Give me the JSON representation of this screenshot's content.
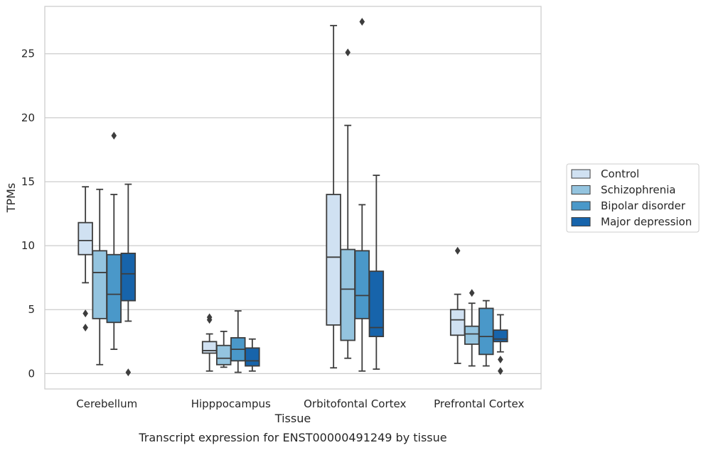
{
  "chart_data": {
    "type": "box",
    "title": "",
    "caption": "Transcript expression for ENST00000491249 by tissue",
    "xlabel": "Tissue",
    "ylabel": "TPMs",
    "ylim": [
      -1.2,
      28.7
    ],
    "yticks": [
      0,
      5,
      10,
      15,
      20,
      25
    ],
    "grid": "horizontal",
    "legend_position": "right",
    "categories": [
      "Cerebellum",
      "Hipppocampus",
      "Orbitofontal Cortex",
      "Prefrontal Cortex"
    ],
    "series": [
      {
        "name": "Control",
        "color": "#d0e1f2",
        "boxes": [
          {
            "whisker_low": 7.1,
            "q1": 9.3,
            "median": 10.4,
            "q3": 11.8,
            "whisker_high": 14.6,
            "outliers": [
              4.7,
              3.6
            ]
          },
          {
            "whisker_low": 0.2,
            "q1": 1.6,
            "median": 1.8,
            "q3": 2.5,
            "whisker_high": 3.1,
            "outliers": [
              4.2,
              4.4
            ]
          },
          {
            "whisker_low": 0.45,
            "q1": 3.8,
            "median": 9.1,
            "q3": 14.0,
            "whisker_high": 27.2,
            "outliers": []
          },
          {
            "whisker_low": 0.8,
            "q1": 3.0,
            "median": 4.2,
            "q3": 5.0,
            "whisker_high": 6.2,
            "outliers": [
              9.6
            ]
          }
        ]
      },
      {
        "name": "Schizophrenia",
        "color": "#94c4df",
        "boxes": [
          {
            "whisker_low": 0.7,
            "q1": 4.3,
            "median": 7.9,
            "q3": 9.6,
            "whisker_high": 14.4,
            "outliers": []
          },
          {
            "whisker_low": 0.5,
            "q1": 0.7,
            "median": 1.2,
            "q3": 2.2,
            "whisker_high": 3.3,
            "outliers": []
          },
          {
            "whisker_low": 1.2,
            "q1": 2.6,
            "median": 6.6,
            "q3": 9.7,
            "whisker_high": 19.4,
            "outliers": [
              25.1
            ]
          },
          {
            "whisker_low": 0.6,
            "q1": 2.3,
            "median": 3.1,
            "q3": 3.7,
            "whisker_high": 5.5,
            "outliers": [
              6.3
            ]
          }
        ]
      },
      {
        "name": "Bipolar disorder",
        "color": "#4a98c9",
        "boxes": [
          {
            "whisker_low": 1.9,
            "q1": 4.0,
            "median": 6.2,
            "q3": 9.3,
            "whisker_high": 14.0,
            "outliers": [
              18.6
            ]
          },
          {
            "whisker_low": 0.1,
            "q1": 1.0,
            "median": 1.9,
            "q3": 2.8,
            "whisker_high": 4.9,
            "outliers": []
          },
          {
            "whisker_low": 0.2,
            "q1": 4.3,
            "median": 6.1,
            "q3": 9.6,
            "whisker_high": 13.2,
            "outliers": [
              27.5
            ]
          },
          {
            "whisker_low": 0.6,
            "q1": 1.5,
            "median": 2.9,
            "q3": 5.1,
            "whisker_high": 5.7,
            "outliers": []
          }
        ]
      },
      {
        "name": "Major depression",
        "color": "#1764ab",
        "boxes": [
          {
            "whisker_low": 4.1,
            "q1": 5.7,
            "median": 7.8,
            "q3": 9.4,
            "whisker_high": 14.8,
            "outliers": [
              0.1
            ]
          },
          {
            "whisker_low": 0.2,
            "q1": 0.6,
            "median": 1.0,
            "q3": 2.0,
            "whisker_high": 2.7,
            "outliers": []
          },
          {
            "whisker_low": 0.35,
            "q1": 2.9,
            "median": 3.6,
            "q3": 8.0,
            "whisker_high": 15.5,
            "outliers": []
          },
          {
            "whisker_low": 1.7,
            "q1": 2.5,
            "median": 2.7,
            "q3": 3.4,
            "whisker_high": 4.6,
            "outliers": [
              1.1,
              0.2
            ]
          }
        ]
      }
    ]
  }
}
